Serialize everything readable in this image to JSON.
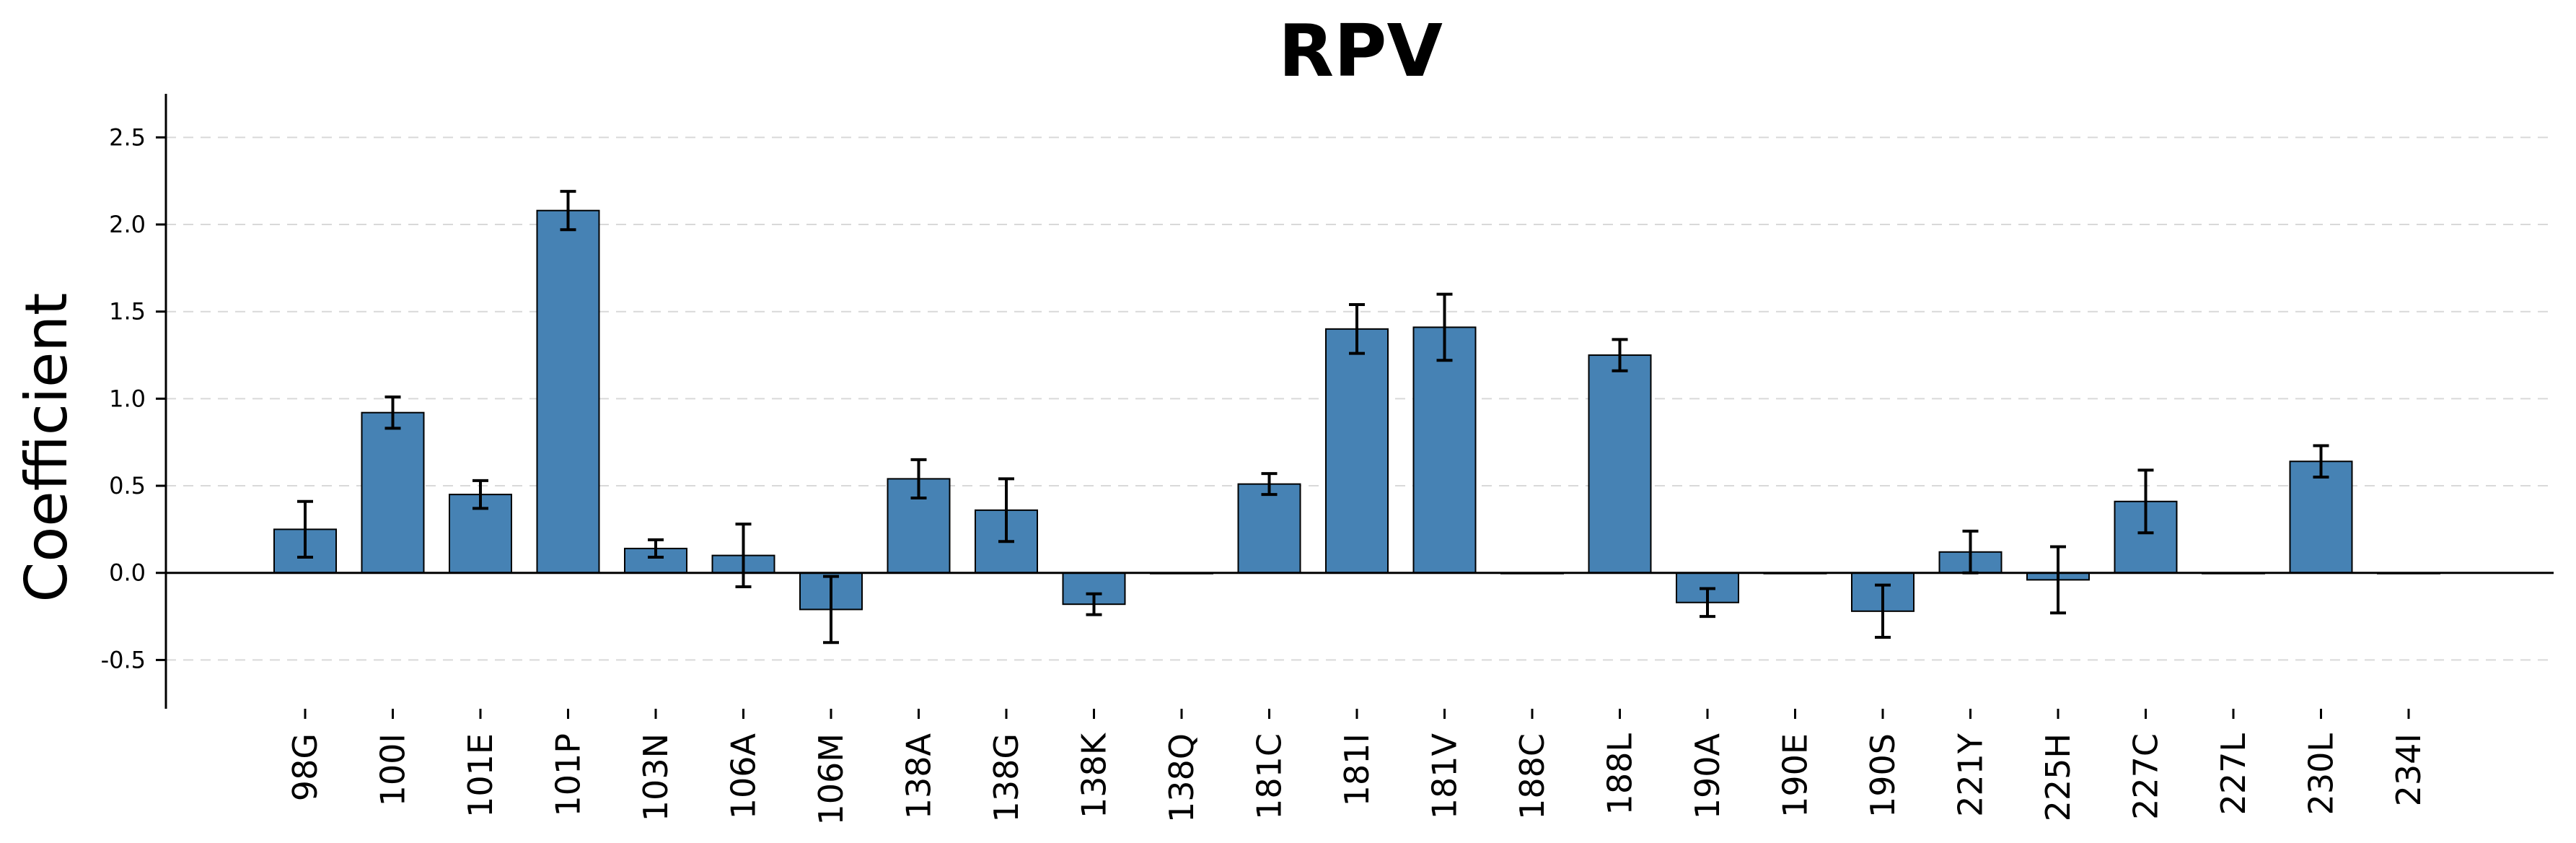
{
  "chart_data": {
    "type": "bar",
    "title": "RPV",
    "xlabel": "",
    "ylabel": "Coefficient",
    "ylim": [
      -0.78,
      2.75
    ],
    "yticks": [
      "-0.5",
      "0.0",
      "0.5",
      "1.0",
      "1.5",
      "2.0",
      "2.5"
    ],
    "grid": "horizontal-dashed",
    "color": "#4682b4",
    "categories": [
      "98G",
      "100I",
      "101E",
      "101P",
      "103N",
      "106A",
      "106M",
      "138A",
      "138G",
      "138K",
      "138Q",
      "181C",
      "181I",
      "181V",
      "188C",
      "188L",
      "190A",
      "190E",
      "190S",
      "221Y",
      "225H",
      "227C",
      "227L",
      "230L",
      "234I"
    ],
    "values": [
      0.25,
      0.92,
      0.45,
      2.08,
      0.14,
      0.1,
      -0.21,
      0.54,
      0.36,
      -0.18,
      0.0,
      0.51,
      1.4,
      1.41,
      0.0,
      1.25,
      -0.17,
      0.0,
      -0.22,
      0.12,
      -0.04,
      0.41,
      0.0,
      0.64,
      0.0
    ],
    "errors": [
      0.16,
      0.09,
      0.08,
      0.11,
      0.05,
      0.18,
      0.19,
      0.11,
      0.18,
      0.06,
      0.0,
      0.06,
      0.14,
      0.19,
      0.0,
      0.09,
      0.08,
      0.0,
      0.15,
      0.12,
      0.19,
      0.18,
      0.0,
      0.09,
      0.0
    ]
  }
}
